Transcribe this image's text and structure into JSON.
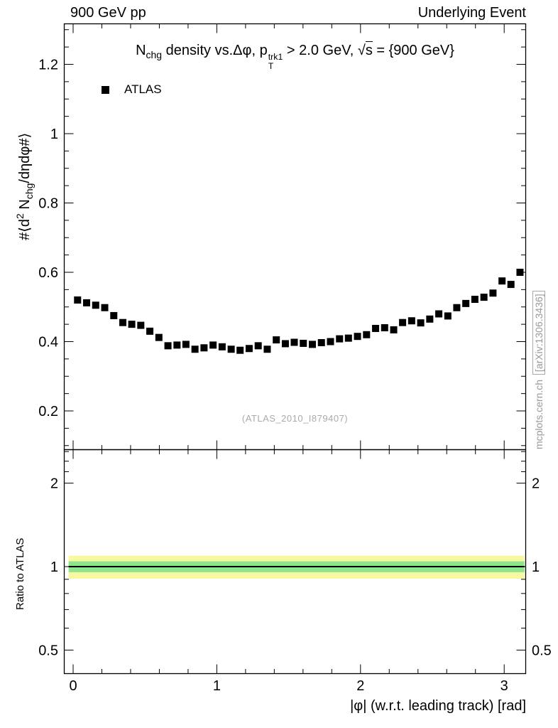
{
  "header": {
    "left": "900 GeV pp",
    "right": "Underlying Event"
  },
  "main_panel": {
    "title_segments": [
      {
        "t": "N"
      },
      {
        "t": "chg",
        "s": "sub"
      },
      {
        "t": " density vs."
      },
      {
        "t": "Δφ, p"
      },
      {
        "t": "trk1",
        "s": "stack",
        "sub": "T"
      },
      {
        "t": " > 2.0 GeV, "
      },
      {
        "t": "s",
        "s": "sqrt"
      },
      {
        "t": " = {900 GeV}"
      }
    ],
    "ylabel_segments": [
      {
        "t": "#⟨d"
      },
      {
        "t": "2",
        "s": "sup"
      },
      {
        "t": " N"
      },
      {
        "t": "chg",
        "s": "sub"
      },
      {
        "t": "/dηdφ#⟩"
      }
    ],
    "legend": [
      {
        "label": "ATLAS",
        "marker": "filled-square",
        "color": "#000000"
      }
    ],
    "watermark": "(ATLAS_2010_I879407)"
  },
  "ratio_panel": {
    "ylabel": "Ratio to ATLAS"
  },
  "xlabel": "|φ| (w.r.t. leading track) [rad]",
  "side_caption": {
    "prefix": "mcplots.cern.ch",
    "boxed": "[arXiv:1306.3436]"
  },
  "chart_data": [
    {
      "type": "scatter",
      "name": "main",
      "title": "Nchg density vs. Δφ, pT(trk1) > 2.0 GeV, sqrt(s) = {900 GeV}",
      "xlabel": "|φ| (w.r.t. leading track) [rad]",
      "ylabel": "#⟨d2 Nchg/dηdφ#⟩",
      "xlim": [
        -0.062,
        3.15
      ],
      "ylim": [
        0.087,
        1.318
      ],
      "grid": false,
      "legend_position": "top-left-inside",
      "xticks": {
        "major": [
          0,
          1,
          2,
          3
        ],
        "labels": [
          "0",
          "1",
          "2",
          "3"
        ],
        "minor_step": 0.2
      },
      "yticks": {
        "major": [
          0.2,
          0.4,
          0.6,
          0.8,
          1.0,
          1.2
        ],
        "labels": [
          "0.2",
          "0.4",
          "0.6",
          "0.8",
          "1",
          "1.2"
        ],
        "minor_step": 0.05
      },
      "series": [
        {
          "name": "ATLAS",
          "marker": "filled-square",
          "color": "#000000",
          "x": [
            0.031,
            0.094,
            0.157,
            0.22,
            0.283,
            0.346,
            0.408,
            0.471,
            0.534,
            0.597,
            0.66,
            0.723,
            0.785,
            0.848,
            0.911,
            0.974,
            1.037,
            1.1,
            1.162,
            1.225,
            1.288,
            1.351,
            1.414,
            1.477,
            1.539,
            1.602,
            1.665,
            1.728,
            1.791,
            1.854,
            1.916,
            1.979,
            2.042,
            2.105,
            2.168,
            2.231,
            2.293,
            2.356,
            2.419,
            2.482,
            2.545,
            2.608,
            2.67,
            2.733,
            2.796,
            2.859,
            2.922,
            2.985,
            3.047,
            3.11
          ],
          "y": [
            0.52,
            0.512,
            0.505,
            0.498,
            0.475,
            0.455,
            0.45,
            0.447,
            0.43,
            0.412,
            0.388,
            0.39,
            0.392,
            0.378,
            0.382,
            0.39,
            0.385,
            0.378,
            0.375,
            0.38,
            0.388,
            0.378,
            0.405,
            0.394,
            0.398,
            0.395,
            0.392,
            0.397,
            0.4,
            0.408,
            0.41,
            0.415,
            0.42,
            0.438,
            0.44,
            0.434,
            0.455,
            0.46,
            0.454,
            0.465,
            0.48,
            0.474,
            0.498,
            0.51,
            0.522,
            0.528,
            0.54,
            0.575,
            0.565,
            0.6
          ]
        }
      ]
    },
    {
      "type": "band",
      "name": "ratio",
      "ylabel": "Ratio to ATLAS",
      "yscale": "log",
      "ylim": [
        0.41,
        2.63
      ],
      "x_range": [
        -0.031,
        3.141
      ],
      "yticks": {
        "major": [
          0.5,
          1,
          2
        ],
        "labels": [
          "0.5",
          "1",
          "2"
        ],
        "minor": [
          0.6,
          0.7,
          0.8,
          0.9,
          2.2,
          2.4,
          2.6
        ]
      },
      "bands": [
        {
          "name": "outer",
          "color": "#f8f8a0",
          "lo": 0.905,
          "hi": 1.095
        },
        {
          "name": "inner",
          "color": "#8ce58c",
          "lo": 0.955,
          "hi": 1.045
        }
      ],
      "line": {
        "y": 1.0,
        "color": "#000000"
      }
    }
  ]
}
